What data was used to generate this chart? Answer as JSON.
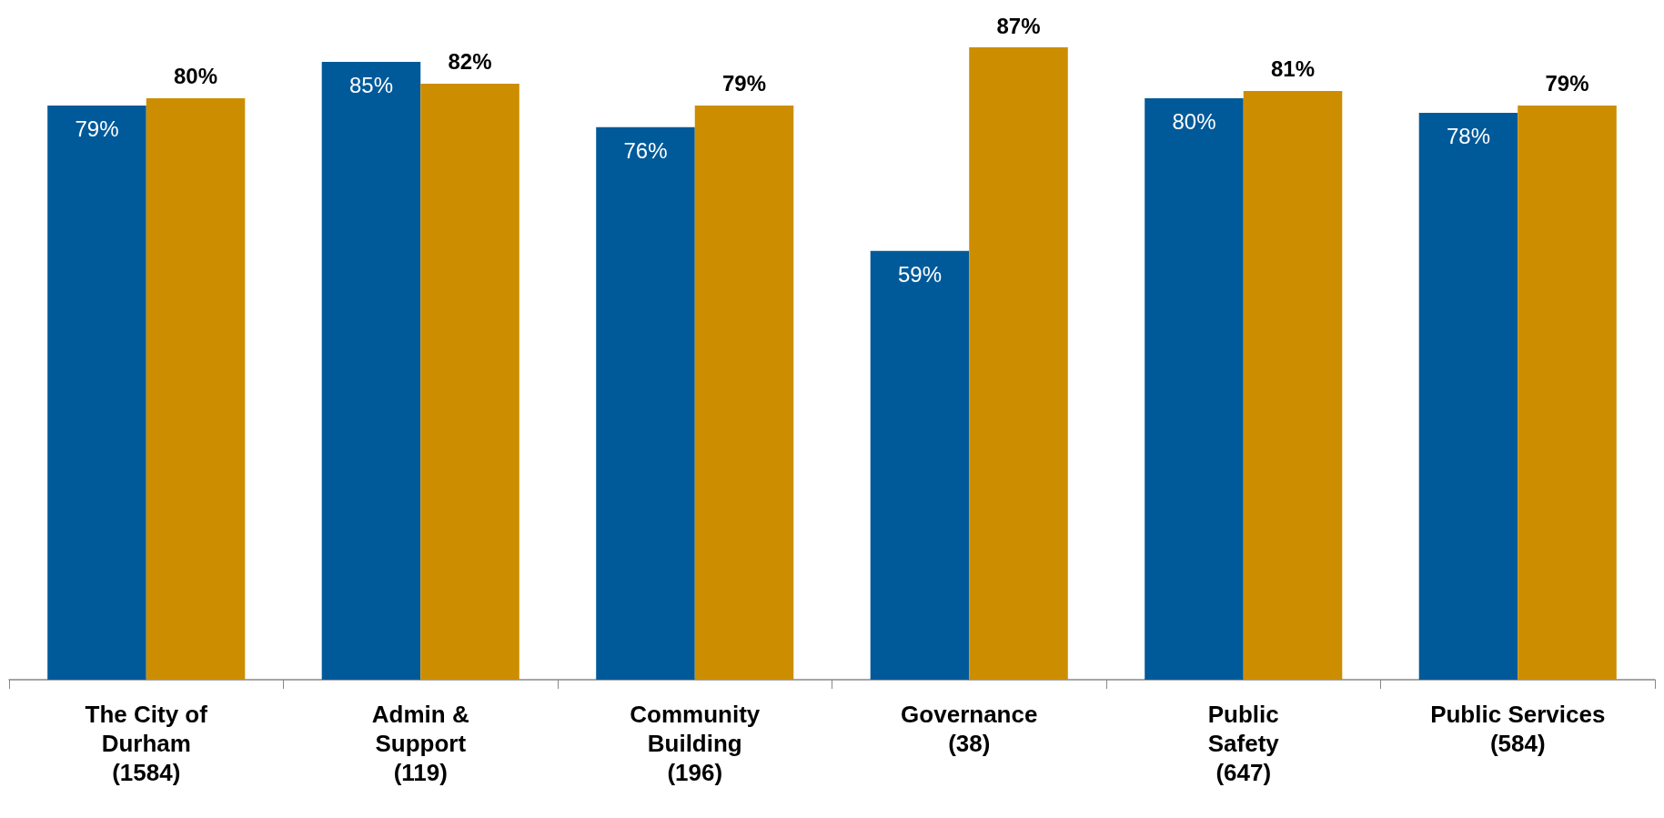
{
  "chart_data": {
    "type": "bar",
    "categories": [
      "The City of\nDurham\n(1584)",
      "Admin &\nSupport\n(119)",
      "Community\nBuilding\n(196)",
      "Governance\n(38)",
      "Public\nSafety\n(647)",
      "Public Services\n(584)"
    ],
    "series": [
      {
        "color": "#005a9a",
        "values": [
          79,
          85,
          76,
          59,
          80,
          78
        ],
        "value_labels": [
          "79%",
          "85%",
          "76%",
          "59%",
          "80%",
          "78%"
        ]
      },
      {
        "color": "#cc8e00",
        "values": [
          80,
          82,
          79,
          87,
          81,
          79
        ],
        "value_labels": [
          "80%",
          "82%",
          "79%",
          "87%",
          "81%",
          "79%"
        ]
      }
    ]
  }
}
